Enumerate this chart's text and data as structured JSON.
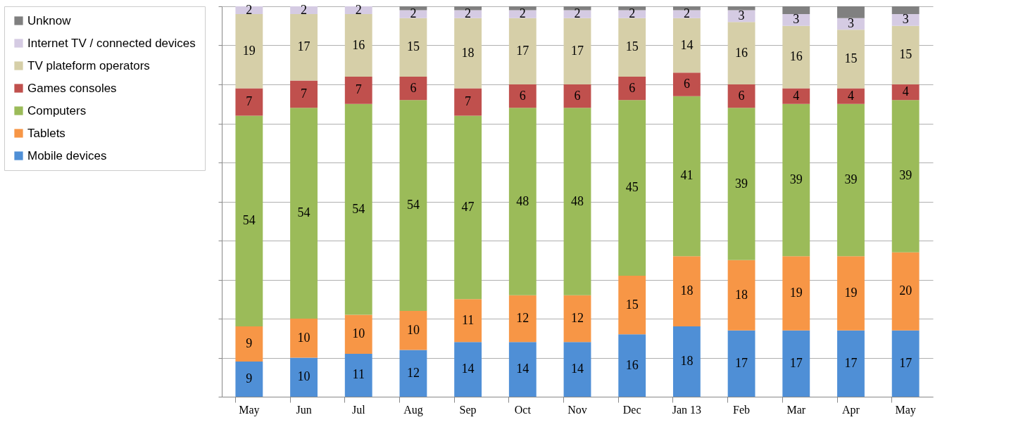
{
  "chart_data": {
    "type": "bar",
    "stacked": true,
    "legend": "left",
    "grid": "y",
    "tick_labels": "x",
    "categories": [
      "May",
      "Jun",
      "Jul",
      "Aug",
      "Sep",
      "Oct",
      "Nov",
      "Dec",
      "Jan 13",
      "Feb",
      "Mar",
      "Apr",
      "May"
    ],
    "ylim": [
      0,
      100
    ],
    "yticks": [
      {
        "value": 0,
        "label": null
      },
      {
        "value": 10,
        "label": null
      },
      {
        "value": 20,
        "label": null
      },
      {
        "value": 30,
        "label": null
      },
      {
        "value": 40,
        "label": null
      },
      {
        "value": 50,
        "label": null
      },
      {
        "value": 60,
        "label": null
      },
      {
        "value": 70,
        "label": null
      },
      {
        "value": 80,
        "label": null
      },
      {
        "value": 90,
        "label": null
      },
      {
        "value": 100,
        "label": null
      }
    ],
    "series": [
      {
        "name": "Mobile devices",
        "color": "#4f8fd6",
        "values": [
          9,
          10,
          11,
          12,
          14,
          14,
          14,
          16,
          18,
          17,
          17,
          17,
          17
        ],
        "value_labels": [
          "9",
          "10",
          "11",
          "12",
          "14",
          "14",
          "14",
          "16",
          "18",
          "17",
          "17",
          "17",
          "17"
        ]
      },
      {
        "name": "Tablets",
        "color": "#f79646",
        "values": [
          9,
          10,
          10,
          10,
          11,
          12,
          12,
          15,
          18,
          18,
          19,
          19,
          20
        ],
        "value_labels": [
          "9",
          "10",
          "10",
          "10",
          "11",
          "12",
          "12",
          "15",
          "18",
          "18",
          "19",
          "19",
          "20"
        ]
      },
      {
        "name": "Computers",
        "color": "#9bbb59",
        "values": [
          54,
          54,
          54,
          54,
          47,
          48,
          48,
          45,
          41,
          39,
          39,
          39,
          39
        ],
        "value_labels": [
          "54",
          "54",
          "54",
          "54",
          "47",
          "48",
          "48",
          "45",
          "41",
          "39",
          "39",
          "39",
          "39"
        ]
      },
      {
        "name": "Games consoles",
        "color": "#c0504d",
        "values": [
          7,
          7,
          7,
          6,
          7,
          6,
          6,
          6,
          6,
          6,
          4,
          4,
          4
        ],
        "value_labels": [
          "7",
          "7",
          "7",
          "6",
          "7",
          "6",
          "6",
          "6",
          "6",
          "6",
          "4",
          "4",
          "4"
        ]
      },
      {
        "name": "TV plateform operators",
        "color": "#d6cfa8",
        "values": [
          19,
          17,
          16,
          15,
          18,
          17,
          17,
          15,
          14,
          16,
          16,
          15,
          15
        ],
        "value_labels": [
          "19",
          "17",
          "16",
          "15",
          "18",
          "17",
          "17",
          "15",
          "14",
          "16",
          "16",
          "15",
          "15"
        ]
      },
      {
        "name": "Internet TV / connected devices",
        "color": "#d5cbe3",
        "values": [
          2,
          2,
          2,
          2,
          2,
          2,
          2,
          2,
          2,
          3,
          3,
          3,
          3
        ],
        "value_labels": [
          "2",
          "2",
          "2",
          "2",
          "2",
          "2",
          "2",
          "2",
          "2",
          "3",
          "3",
          "3",
          "3"
        ]
      },
      {
        "name": "Unknow",
        "color": "#808080",
        "values": [
          0,
          0,
          0,
          1,
          1,
          1,
          1,
          1,
          1,
          1,
          2,
          3,
          2
        ],
        "value_labels": [
          null,
          null,
          null,
          null,
          null,
          null,
          null,
          null,
          null,
          null,
          null,
          null,
          null
        ]
      }
    ]
  }
}
